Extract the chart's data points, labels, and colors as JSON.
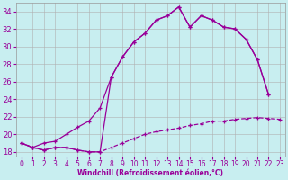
{
  "xlabel": "Windchill (Refroidissement éolien,°C)",
  "background_color": "#c8eef0",
  "grid_color": "#b0b0b0",
  "line_color": "#990099",
  "xlim": [
    -0.5,
    23.5
  ],
  "ylim": [
    17.5,
    35.0
  ],
  "yticks": [
    18,
    20,
    22,
    24,
    26,
    28,
    30,
    32,
    34
  ],
  "xticks": [
    0,
    1,
    2,
    3,
    4,
    5,
    6,
    7,
    8,
    9,
    10,
    11,
    12,
    13,
    14,
    15,
    16,
    17,
    18,
    19,
    20,
    21,
    22,
    23
  ],
  "line1_x": [
    0,
    1,
    2,
    3,
    4,
    5,
    6,
    7,
    8,
    9,
    10,
    11,
    12,
    13,
    14,
    15,
    16,
    17,
    18,
    19,
    20,
    21,
    22,
    23
  ],
  "line1_y": [
    19.0,
    18.5,
    18.2,
    18.5,
    18.5,
    18.2,
    18.0,
    18.0,
    18.5,
    19.0,
    19.5,
    20.0,
    20.3,
    20.5,
    20.7,
    21.0,
    21.2,
    21.5,
    21.5,
    21.7,
    21.8,
    21.9,
    21.8,
    21.7
  ],
  "line2_x": [
    0,
    1,
    2,
    3,
    4,
    5,
    6,
    7,
    8,
    9,
    10,
    11,
    12,
    13,
    14,
    15,
    16,
    17,
    18,
    19,
    20,
    21,
    22
  ],
  "line2_y": [
    19.0,
    18.5,
    18.2,
    18.5,
    18.5,
    18.2,
    18.0,
    18.0,
    26.5,
    28.8,
    30.5,
    31.5,
    33.0,
    33.5,
    34.5,
    32.2,
    33.5,
    33.0,
    32.2,
    32.0,
    30.8,
    28.5,
    24.5
  ],
  "line3_x": [
    0,
    1,
    2,
    3,
    4,
    5,
    6,
    7,
    8,
    9,
    10,
    11,
    12,
    13,
    14,
    15,
    16,
    17,
    18,
    19,
    20,
    21,
    22
  ],
  "line3_y": [
    19.0,
    18.5,
    19.0,
    19.2,
    20.0,
    20.8,
    21.5,
    23.0,
    26.5,
    28.8,
    30.5,
    31.5,
    33.0,
    33.5,
    34.5,
    32.2,
    33.5,
    33.0,
    32.2,
    32.0,
    30.8,
    28.5,
    24.5
  ]
}
